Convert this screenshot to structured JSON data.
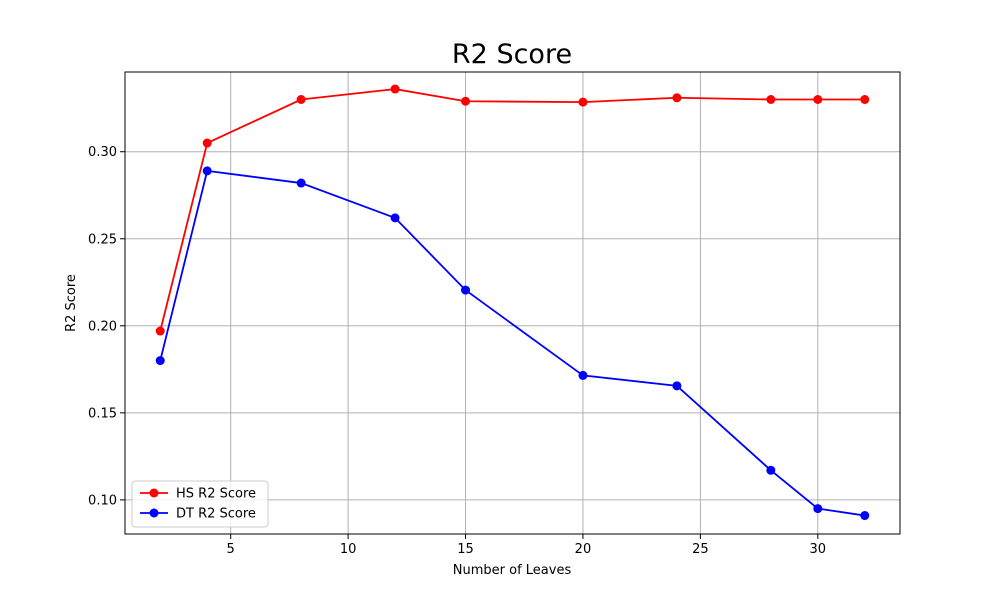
{
  "chart_data": {
    "type": "line",
    "title": "R2 Score",
    "xlabel": "Number of Leaves",
    "ylabel": "R2 Score",
    "x": [
      2,
      4,
      8,
      12,
      15,
      20,
      24,
      28,
      30,
      32
    ],
    "xlim": [
      0.5,
      33.5
    ],
    "ylim": [
      0.0804,
      0.3458
    ],
    "xticks": [
      5,
      10,
      15,
      20,
      25,
      30
    ],
    "yticks": [
      0.1,
      0.15,
      0.2,
      0.25,
      0.3
    ],
    "ytick_labels": [
      "0.10",
      "0.15",
      "0.20",
      "0.25",
      "0.30"
    ],
    "grid": true,
    "legend_position": "lower-left",
    "series": [
      {
        "name": "HS R2 Score",
        "color": "#ff0000",
        "marker": "circle",
        "values": [
          0.197,
          0.305,
          0.33,
          0.336,
          0.329,
          0.3285,
          0.331,
          0.33,
          0.33,
          0.33
        ]
      },
      {
        "name": "DT R2 Score",
        "color": "#0000ff",
        "marker": "circle",
        "values": [
          0.18,
          0.289,
          0.282,
          0.262,
          0.2205,
          0.1715,
          0.1655,
          0.117,
          0.095,
          0.091
        ]
      }
    ]
  }
}
